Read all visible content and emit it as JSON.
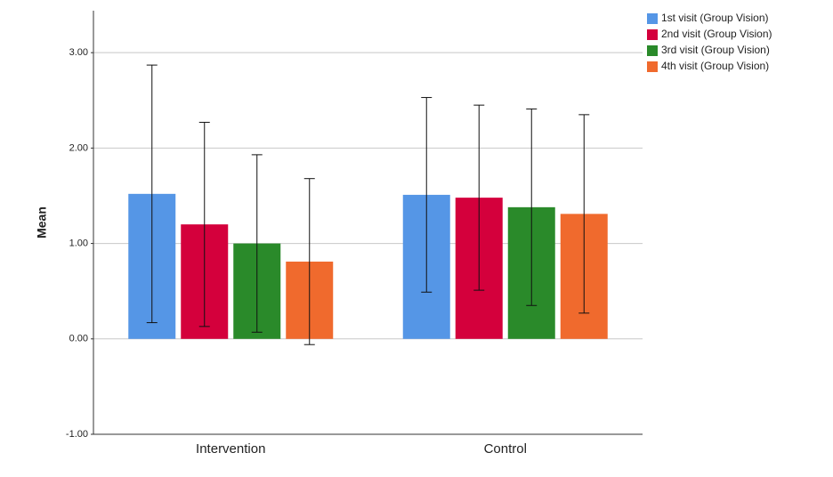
{
  "chart_data": {
    "type": "bar",
    "y_label": "Mean",
    "categories": [
      "Intervention",
      "Control"
    ],
    "series": [
      {
        "name": "1st visit (Group Vision)",
        "color": "#5596e6",
        "values": [
          1.52,
          1.51
        ],
        "errors": [
          1.35,
          1.02
        ]
      },
      {
        "name": "2nd visit (Group Vision)",
        "color": "#d4003c",
        "values": [
          1.2,
          1.48
        ],
        "errors": [
          1.07,
          0.97
        ]
      },
      {
        "name": "3rd visit (Group Vision)",
        "color": "#2a8a2a",
        "values": [
          1.0,
          1.38
        ],
        "errors": [
          0.93,
          1.03
        ]
      },
      {
        "name": "4th visit (Group Vision)",
        "color": "#f06a2d",
        "values": [
          0.81,
          1.31
        ],
        "errors": [
          0.87,
          1.04
        ]
      }
    ],
    "ylim": [
      -1,
      3.44
    ],
    "yticks": [
      {
        "value": -1,
        "label": "-1.00"
      },
      {
        "value": 0,
        "label": "0.00"
      },
      {
        "value": 1,
        "label": "1.00"
      },
      {
        "value": 2,
        "label": "2.00"
      },
      {
        "value": 3,
        "label": "3.00"
      }
    ],
    "grid": true,
    "legend": "top-right"
  }
}
